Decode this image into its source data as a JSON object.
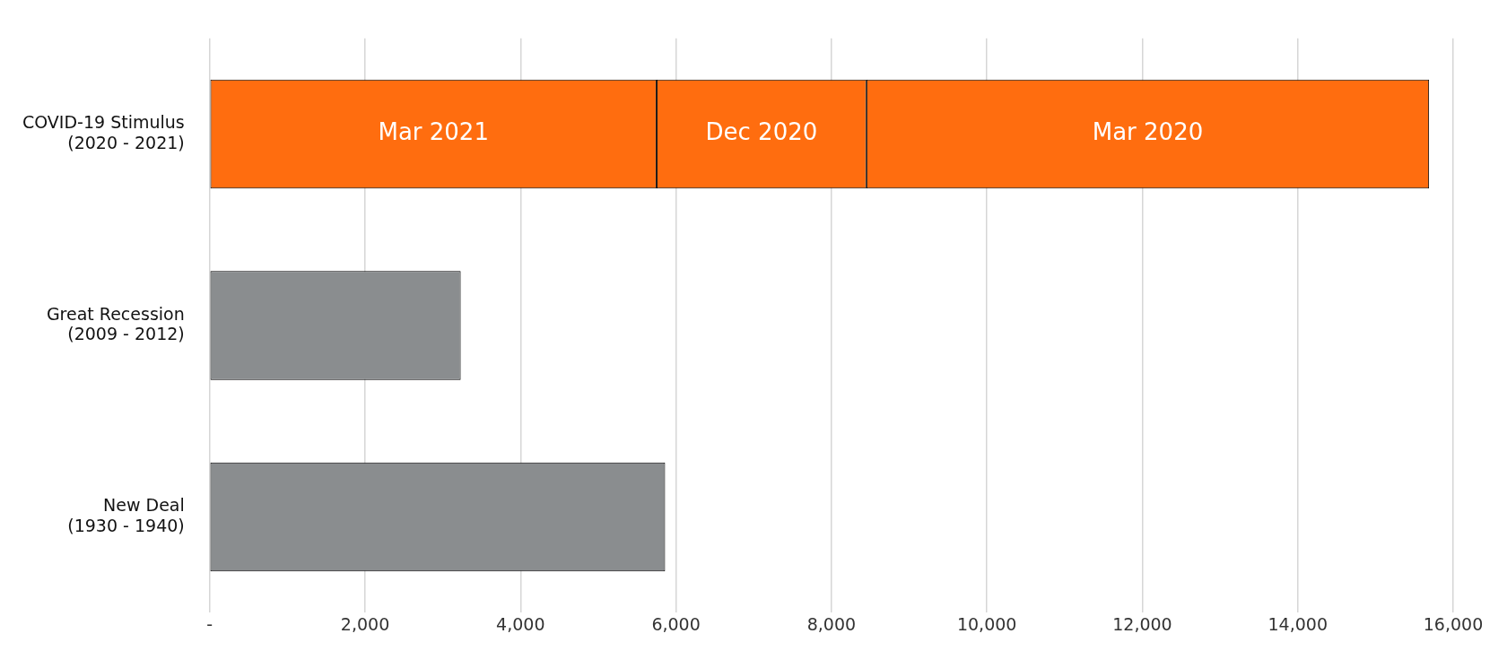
{
  "chart_data": {
    "type": "bar",
    "orientation": "horizontal",
    "stacked": true,
    "categories": [
      "COVID-19 Stimulus\n(2020 - 2021)",
      "Great Recession\n(2009 - 2012)",
      "New Deal\n(1930 - 1940)"
    ],
    "series": [
      {
        "colors": [
          "#ff6d0f",
          "#8a8d8f",
          "#8a8d8f"
        ],
        "values": [
          5750,
          3230,
          5860
        ],
        "value_labels": [
          "Mar 2021",
          null,
          null
        ]
      },
      {
        "color": "#ff6d0f",
        "values": [
          2700,
          null,
          null
        ],
        "value_labels": [
          "Dec 2020",
          null,
          null
        ]
      },
      {
        "color": "#ff6d0f",
        "values": [
          7240,
          null,
          null
        ],
        "value_labels": [
          "Mar 2020",
          null,
          null
        ]
      }
    ],
    "xlim": [
      0,
      16000
    ],
    "xticks": [
      {
        "value": 0,
        "label": "-"
      },
      {
        "value": 2000,
        "label": "2,000"
      },
      {
        "value": 4000,
        "label": "4,000"
      },
      {
        "value": 6000,
        "label": "6,000"
      },
      {
        "value": 8000,
        "label": "8,000"
      },
      {
        "value": 10000,
        "label": "10,000"
      },
      {
        "value": 12000,
        "label": "12,000"
      },
      {
        "value": 14000,
        "label": "14,000"
      },
      {
        "value": 16000,
        "label": "16,000"
      }
    ],
    "grid": "x",
    "legend": false
  }
}
